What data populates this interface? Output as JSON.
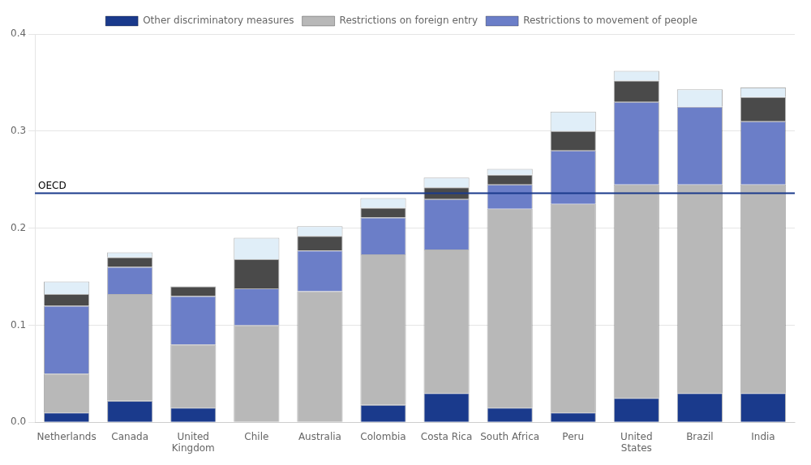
{
  "chart_data": {
    "type": "bar",
    "stacked": true,
    "categories": [
      "Netherlands",
      "Canada",
      "United\nKingdom",
      "Chile",
      "Australia",
      "Colombia",
      "Costa Rica",
      "South Africa",
      "Peru",
      "United\nStates",
      "Brazil",
      "India"
    ],
    "series": [
      {
        "name": "Other discriminatory measures",
        "color": "#1a3a8c",
        "values": [
          0.01,
          0.022,
          0.015,
          0.0,
          0.0,
          0.018,
          0.03,
          0.015,
          0.01,
          0.025,
          0.03,
          0.03
        ]
      },
      {
        "name": "Restrictions on foreign entry",
        "color": "#b8b8b8",
        "values": [
          0.04,
          0.11,
          0.065,
          0.1,
          0.135,
          0.155,
          0.148,
          0.205,
          0.215,
          0.22,
          0.215,
          0.215
        ]
      },
      {
        "name": "Restrictions to movement of people",
        "color": "#6b7ec8",
        "values": [
          0.07,
          0.028,
          0.05,
          0.038,
          0.042,
          0.038,
          0.052,
          0.025,
          0.055,
          0.085,
          0.08,
          0.065
        ]
      },
      {
        "color": "#4a4a4a",
        "values": [
          0.012,
          0.01,
          0.01,
          0.03,
          0.015,
          0.01,
          0.012,
          0.01,
          0.02,
          0.022,
          0.0,
          0.025
        ]
      },
      {
        "color": "#e0eef8",
        "values": [
          0.013,
          0.005,
          0.0,
          0.022,
          0.01,
          0.01,
          0.01,
          0.006,
          0.02,
          0.01,
          0.018,
          0.01
        ]
      }
    ],
    "reference_line": {
      "value": 0.236,
      "label": "OECD",
      "color": "#1a3a8c"
    },
    "ylim": [
      0,
      0.4
    ],
    "yticks": [
      {
        "value": 0,
        "label": "0.0"
      },
      0.1,
      0.2,
      0.3,
      0.4
    ],
    "grid": true,
    "legend": "top"
  }
}
